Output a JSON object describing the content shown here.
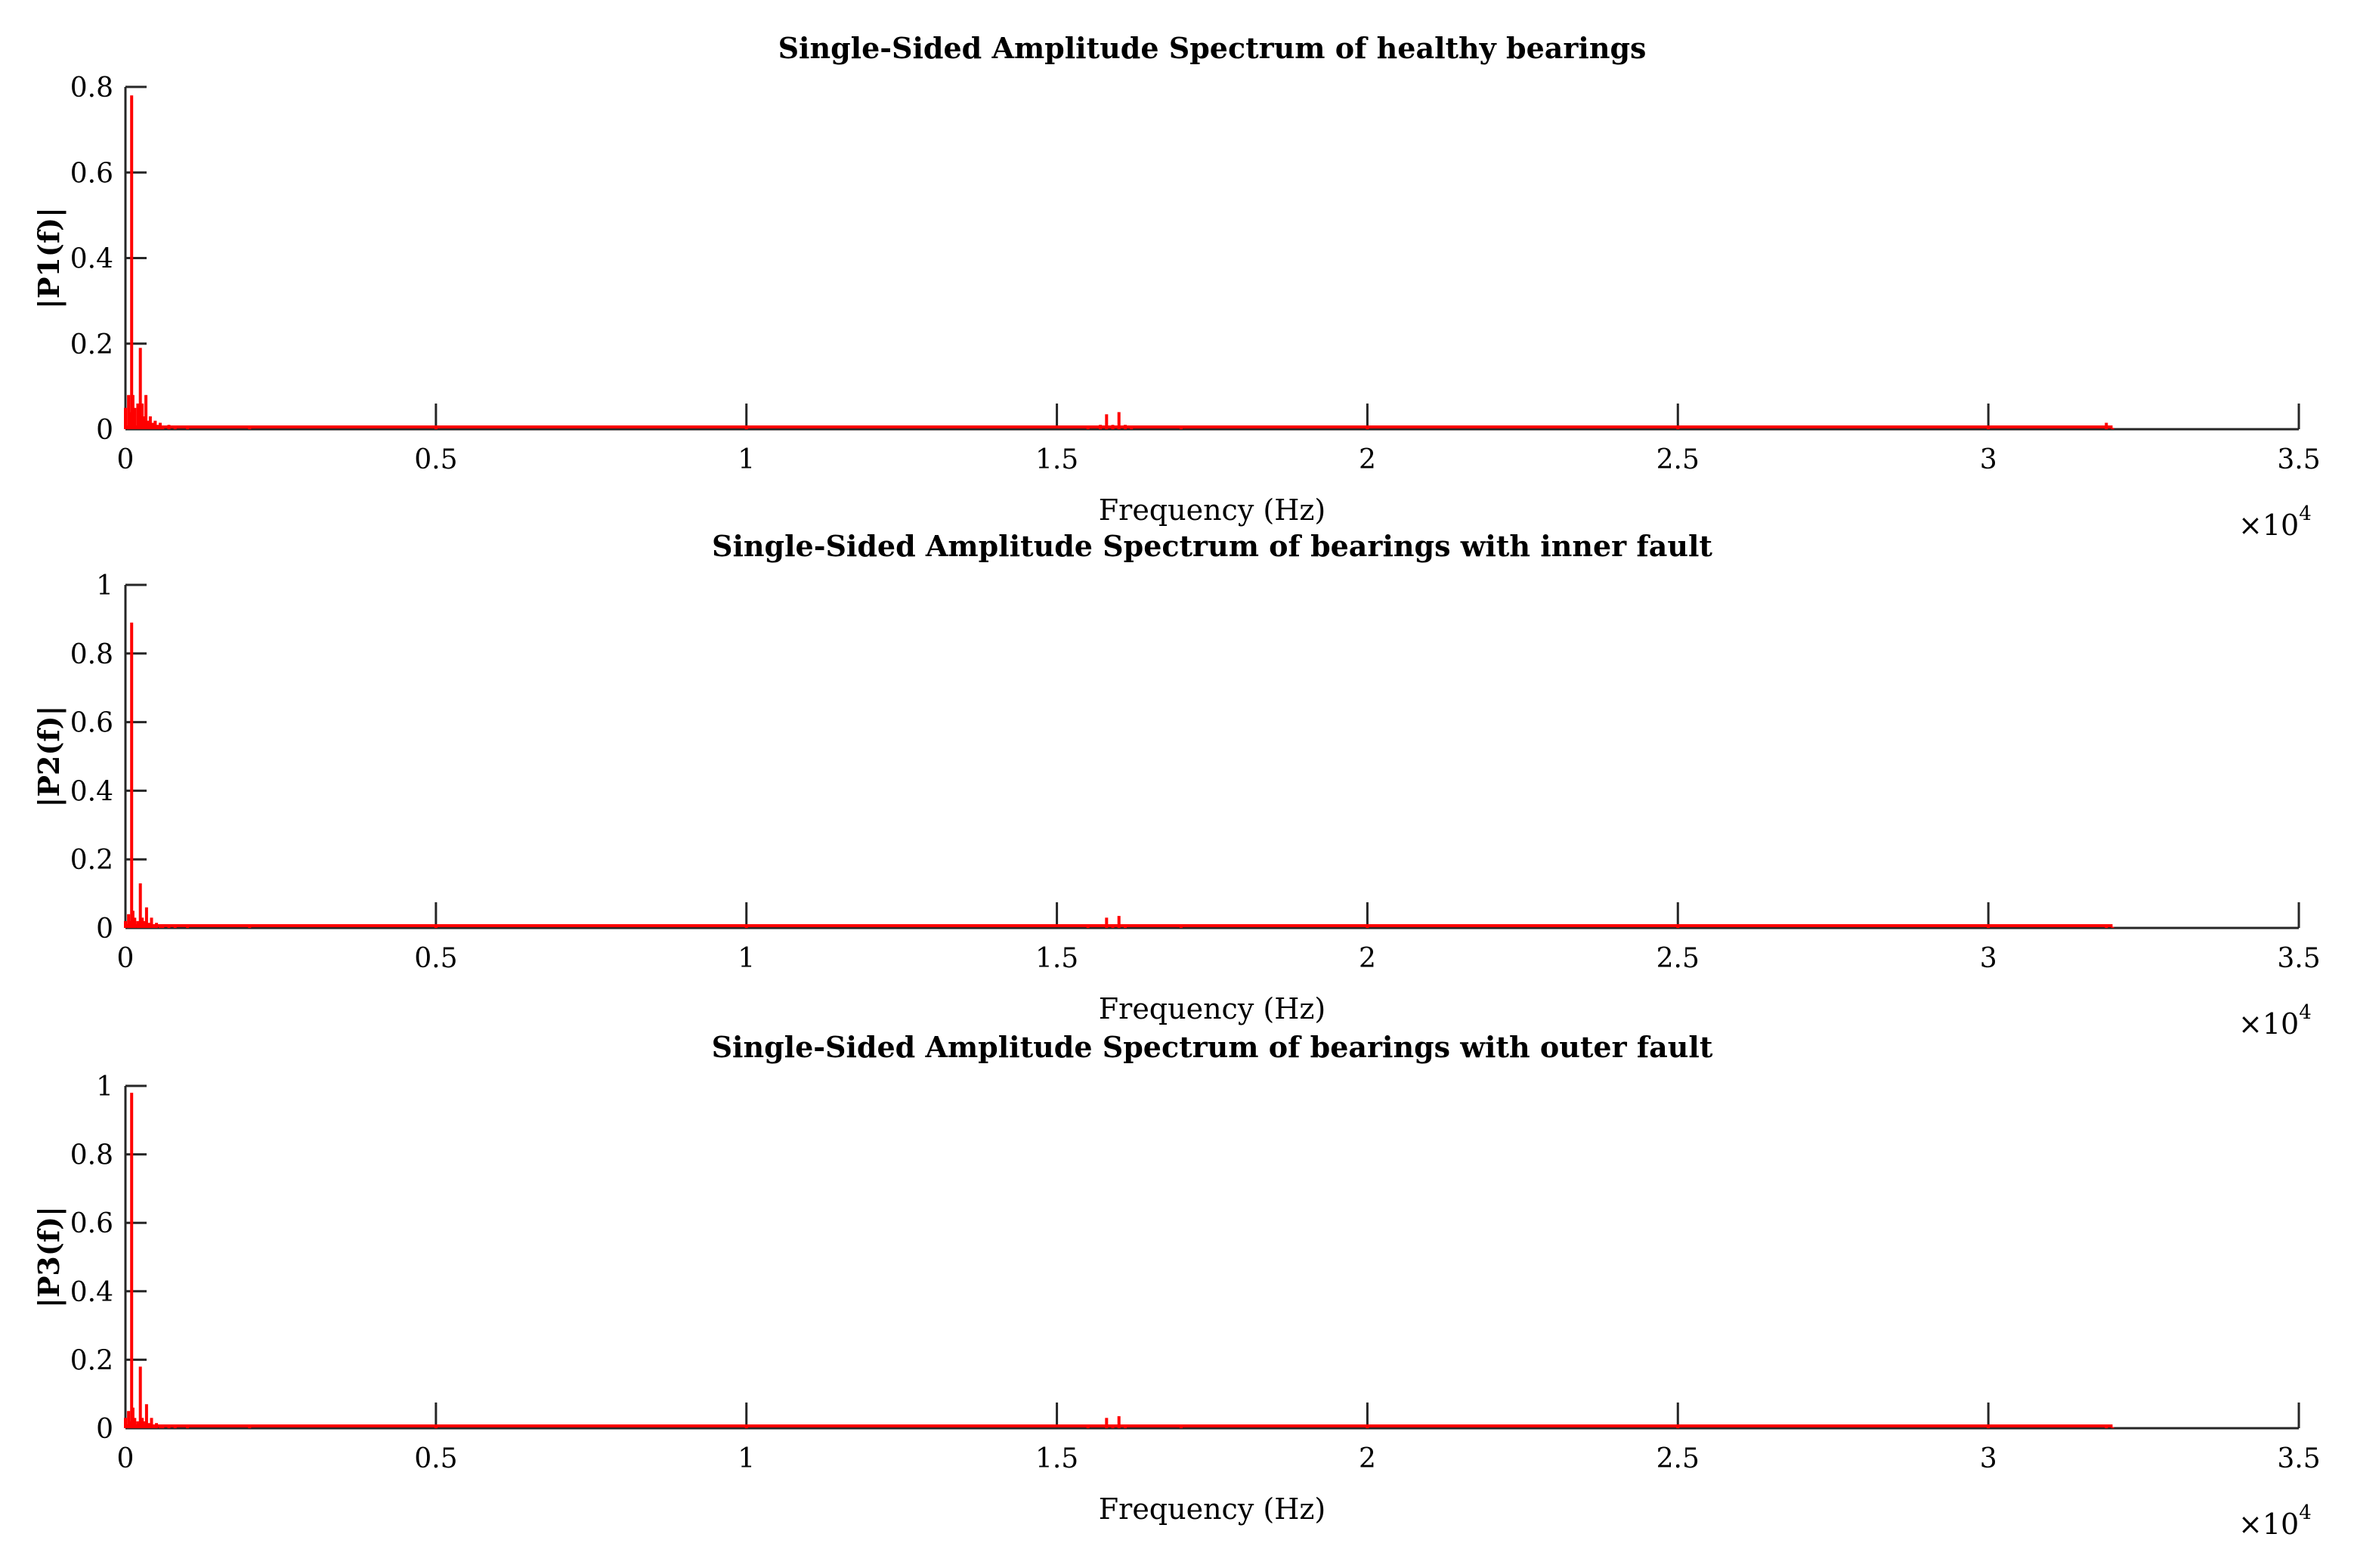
{
  "colors": {
    "series": "#ff0000",
    "axis": "#262626"
  },
  "chart_data": [
    {
      "type": "line",
      "title": "Single-Sided Amplitude Spectrum of healthy bearings",
      "xlabel": "Frequency (Hz)",
      "ylabel": "|P1(f)|",
      "x_multiplier": "×10",
      "x_multiplier_exp": "4",
      "xlim": [
        0,
        35000
      ],
      "ylim": [
        0,
        0.8
      ],
      "xticks": [
        0,
        5000,
        10000,
        15000,
        20000,
        25000,
        30000,
        35000
      ],
      "xtick_labels": [
        "0",
        "0.5",
        "1",
        "1.5",
        "2",
        "2.5",
        "3",
        "3.5"
      ],
      "yticks": [
        0,
        0.2,
        0.4,
        0.6,
        0.8
      ],
      "ytick_labels": [
        "0",
        "0.2",
        "0.4",
        "0.6",
        "0.8"
      ],
      "series": [
        {
          "x": [
            0,
            50,
            80,
            100,
            120,
            150,
            200,
            240,
            270,
            300,
            330,
            360,
            400,
            440,
            480,
            520,
            560,
            600,
            700,
            800,
            1000,
            2000,
            5000,
            10000,
            15500,
            15700,
            15800,
            15900,
            16000,
            16100,
            16200,
            17000,
            20000,
            25000,
            30000,
            31900,
            32000
          ],
          "y": [
            0.05,
            0.08,
            0.04,
            0.78,
            0.08,
            0.05,
            0.06,
            0.19,
            0.06,
            0.03,
            0.08,
            0.02,
            0.03,
            0.015,
            0.02,
            0.01,
            0.015,
            0.008,
            0.01,
            0.006,
            0.005,
            0.004,
            0.003,
            0.003,
            0.003,
            0.01,
            0.035,
            0.01,
            0.04,
            0.01,
            0.004,
            0.003,
            0.003,
            0.003,
            0.003,
            0.015,
            0.003
          ]
        }
      ]
    },
    {
      "type": "line",
      "title": "Single-Sided Amplitude Spectrum of bearings with inner fault",
      "xlabel": "Frequency (Hz)",
      "ylabel": "|P2(f)|",
      "x_multiplier": "×10",
      "x_multiplier_exp": "4",
      "xlim": [
        0,
        35000
      ],
      "ylim": [
        0,
        1
      ],
      "xticks": [
        0,
        5000,
        10000,
        15000,
        20000,
        25000,
        30000,
        35000
      ],
      "xtick_labels": [
        "0",
        "0.5",
        "1",
        "1.5",
        "2",
        "2.5",
        "3",
        "3.5"
      ],
      "yticks": [
        0,
        0.2,
        0.4,
        0.6,
        0.8,
        1
      ],
      "ytick_labels": [
        "0",
        "0.2",
        "0.4",
        "0.6",
        "0.8",
        "1"
      ],
      "series": [
        {
          "x": [
            0,
            50,
            80,
            100,
            120,
            150,
            200,
            240,
            270,
            300,
            340,
            380,
            420,
            460,
            500,
            560,
            600,
            700,
            800,
            1000,
            2000,
            5000,
            10000,
            15500,
            15800,
            15900,
            16000,
            16100,
            17000,
            20000,
            25000,
            30000,
            31900,
            32000
          ],
          "y": [
            0.02,
            0.04,
            0.02,
            0.89,
            0.05,
            0.03,
            0.02,
            0.13,
            0.03,
            0.02,
            0.06,
            0.015,
            0.03,
            0.01,
            0.015,
            0.008,
            0.01,
            0.006,
            0.005,
            0.004,
            0.003,
            0.003,
            0.003,
            0.003,
            0.03,
            0.008,
            0.035,
            0.004,
            0.003,
            0.003,
            0.003,
            0.003,
            0.01,
            0.003
          ]
        }
      ]
    },
    {
      "type": "line",
      "title": "Single-Sided Amplitude Spectrum of bearings with outer fault",
      "xlabel": "Frequency (Hz)",
      "ylabel": "|P3(f)|",
      "x_multiplier": "×10",
      "x_multiplier_exp": "4",
      "xlim": [
        0,
        35000
      ],
      "ylim": [
        0,
        1
      ],
      "xticks": [
        0,
        5000,
        10000,
        15000,
        20000,
        25000,
        30000,
        35000
      ],
      "xtick_labels": [
        "0",
        "0.5",
        "1",
        "1.5",
        "2",
        "2.5",
        "3",
        "3.5"
      ],
      "yticks": [
        0,
        0.2,
        0.4,
        0.6,
        0.8,
        1
      ],
      "ytick_labels": [
        "0",
        "0.2",
        "0.4",
        "0.6",
        "0.8",
        "1"
      ],
      "series": [
        {
          "x": [
            0,
            50,
            80,
            100,
            120,
            150,
            200,
            240,
            270,
            300,
            340,
            380,
            420,
            460,
            500,
            560,
            600,
            700,
            800,
            1000,
            2000,
            5000,
            10000,
            15500,
            15800,
            15900,
            16000,
            16100,
            17000,
            20000,
            25000,
            30000,
            31900,
            32000
          ],
          "y": [
            0.03,
            0.05,
            0.02,
            0.98,
            0.06,
            0.03,
            0.02,
            0.18,
            0.03,
            0.02,
            0.07,
            0.015,
            0.03,
            0.01,
            0.015,
            0.008,
            0.01,
            0.006,
            0.005,
            0.004,
            0.003,
            0.003,
            0.003,
            0.003,
            0.03,
            0.008,
            0.035,
            0.004,
            0.003,
            0.003,
            0.003,
            0.003,
            0.01,
            0.003
          ]
        }
      ]
    }
  ]
}
